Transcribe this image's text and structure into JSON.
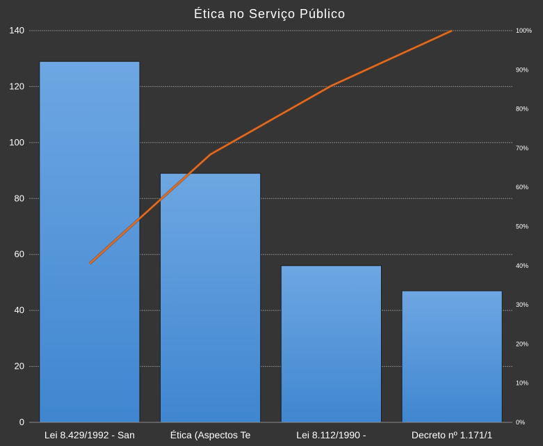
{
  "chart_data": {
    "type": "bar",
    "title": "Ética no Serviço Público",
    "categories": [
      "Lei 8.429/1992 - San",
      "Ética (Aspectos Te",
      "Lei 8.112/1990 -",
      "Decreto nº 1.171/1"
    ],
    "series": [
      {
        "type": "bar",
        "values": [
          129,
          89,
          56,
          47
        ]
      },
      {
        "type": "line",
        "axis": "right",
        "values": [
          40.5,
          68.4,
          85.9,
          100
        ]
      }
    ],
    "ylim": [
      0,
      140
    ],
    "yticks": [
      0,
      20,
      40,
      60,
      80,
      100,
      120,
      140
    ],
    "y2lim": [
      0,
      100
    ],
    "y2ticks": [
      "0%",
      "10%",
      "20%",
      "30%",
      "40%",
      "50%",
      "60%",
      "70%",
      "80%",
      "90%",
      "100%"
    ],
    "grid": true,
    "colors": {
      "background": "#353535",
      "bar": "#4a8fd6",
      "bar_top": "#6ea7e2",
      "line": "#e06c24",
      "grid": "#9a9a9a",
      "text": "#ffffff"
    }
  }
}
